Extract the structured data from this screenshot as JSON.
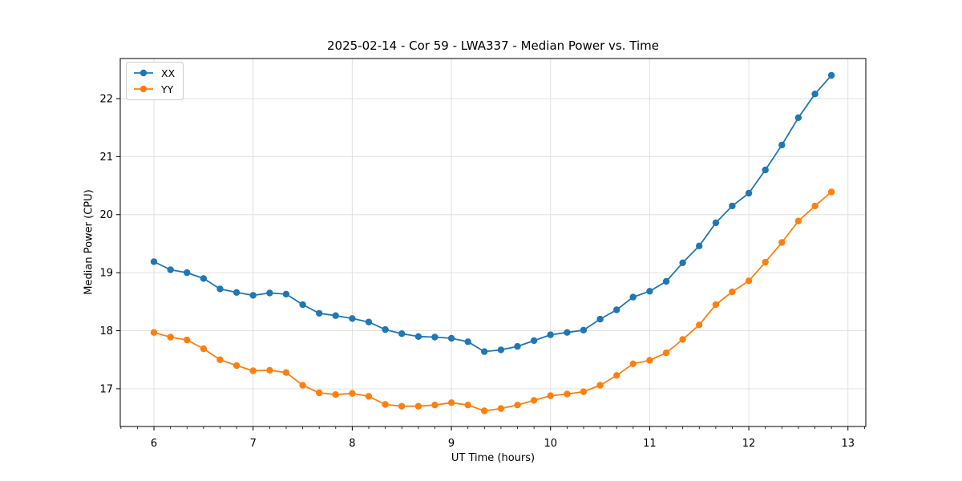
{
  "chart_data": {
    "type": "line",
    "title": "2025-02-14 - Cor 59 - LWA337 - Median Power vs. Time",
    "xlabel": "UT Time (hours)",
    "ylabel": "Median Power (CPU)",
    "xlim": [
      5.66,
      13.18
    ],
    "ylim": [
      16.35,
      22.69
    ],
    "x_ticks": [
      6,
      7,
      8,
      9,
      10,
      11,
      12,
      13
    ],
    "y_ticks": [
      17,
      18,
      19,
      20,
      21,
      22
    ],
    "x_minor_tick_step": 0.16667,
    "grid": true,
    "grid_color": "#e0e0e0",
    "spine_color": "#000000",
    "legend_position": "upper left",
    "marker": "o",
    "x": [
      6.0,
      6.167,
      6.333,
      6.5,
      6.667,
      6.833,
      7.0,
      7.167,
      7.333,
      7.5,
      7.667,
      7.833,
      8.0,
      8.167,
      8.333,
      8.5,
      8.667,
      8.833,
      9.0,
      9.167,
      9.333,
      9.5,
      9.667,
      9.833,
      10.0,
      10.167,
      10.333,
      10.5,
      10.667,
      10.833,
      11.0,
      11.167,
      11.333,
      11.5,
      11.667,
      11.833,
      12.0,
      12.167,
      12.333,
      12.5,
      12.667,
      12.833
    ],
    "series": [
      {
        "name": "XX",
        "color": "#1f77b4",
        "values": [
          19.19,
          19.05,
          19.0,
          18.9,
          18.72,
          18.66,
          18.61,
          18.65,
          18.63,
          18.45,
          18.3,
          18.26,
          18.21,
          18.15,
          18.02,
          17.95,
          17.9,
          17.89,
          17.87,
          17.81,
          17.64,
          17.67,
          17.73,
          17.83,
          17.93,
          17.97,
          18.01,
          18.2,
          18.36,
          18.58,
          18.68,
          18.85,
          19.17,
          19.46,
          19.86,
          20.15,
          20.37,
          20.77,
          21.2,
          21.67,
          22.08,
          22.4
        ]
      },
      {
        "name": "YY",
        "color": "#ff7f0e",
        "values": [
          17.97,
          17.89,
          17.84,
          17.69,
          17.5,
          17.4,
          17.31,
          17.32,
          17.28,
          17.06,
          16.93,
          16.9,
          16.92,
          16.87,
          16.73,
          16.7,
          16.7,
          16.72,
          16.76,
          16.72,
          16.62,
          16.66,
          16.72,
          16.8,
          16.88,
          16.91,
          16.95,
          17.06,
          17.23,
          17.43,
          17.49,
          17.62,
          17.85,
          18.1,
          18.45,
          18.67,
          18.86,
          19.18,
          19.52,
          19.89,
          20.15,
          20.39
        ]
      }
    ]
  }
}
